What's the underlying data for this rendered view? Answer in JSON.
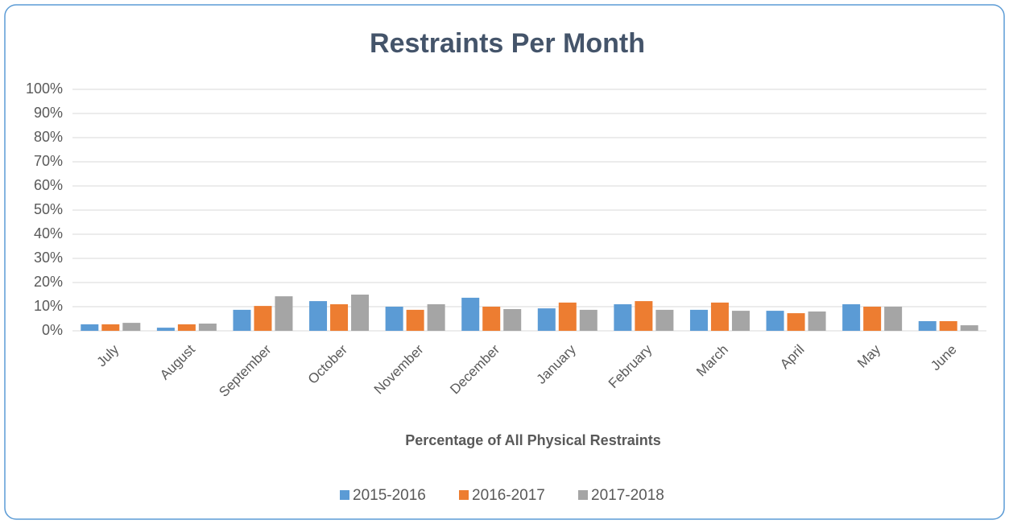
{
  "chart_data": {
    "type": "bar",
    "title": "Restraints Per Month",
    "x_label": "Percentage of All Physical Restraints",
    "categories": [
      "July",
      "August",
      "September",
      "October",
      "November",
      "December",
      "January",
      "February",
      "March",
      "April",
      "May",
      "June"
    ],
    "series": [
      {
        "name": "2015-2016",
        "color": "#5b9bd5",
        "values": [
          2.7,
          1.3,
          8.7,
          12.3,
          10,
          13.7,
          9.3,
          11,
          8.7,
          8.3,
          11,
          4
        ]
      },
      {
        "name": "2016-2017",
        "color": "#ed7d31",
        "values": [
          2.7,
          2.7,
          10.3,
          11,
          8.7,
          10,
          11.7,
          12.3,
          11.7,
          7.3,
          10,
          4
        ]
      },
      {
        "name": "2017-2018",
        "color": "#a5a5a5",
        "values": [
          3.3,
          3,
          14.3,
          15,
          11,
          9,
          8.7,
          8.7,
          8.3,
          8,
          10,
          2.3
        ]
      }
    ],
    "ylim": [
      0,
      100
    ],
    "yticks": [
      {
        "value": 0,
        "label": "0%"
      },
      {
        "value": 10,
        "label": "10%"
      },
      {
        "value": 20,
        "label": "20%"
      },
      {
        "value": 30,
        "label": "30%"
      },
      {
        "value": 40,
        "label": "40%"
      },
      {
        "value": 50,
        "label": "50%"
      },
      {
        "value": 60,
        "label": "60%"
      },
      {
        "value": 70,
        "label": "70%"
      },
      {
        "value": 80,
        "label": "80%"
      },
      {
        "value": 90,
        "label": "90%"
      },
      {
        "value": 100,
        "label": "100%"
      }
    ],
    "grid": true,
    "legend": "bottom"
  }
}
